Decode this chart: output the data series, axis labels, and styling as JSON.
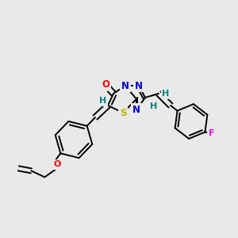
{
  "bg_color": "#e9e9e9",
  "bond_color": "#000000",
  "atom_colors": {
    "O": "#ff0000",
    "N": "#0000cd",
    "S": "#b8b800",
    "F": "#ee00ee",
    "H": "#008080",
    "C": "#000000"
  },
  "font_size": 8.5
}
